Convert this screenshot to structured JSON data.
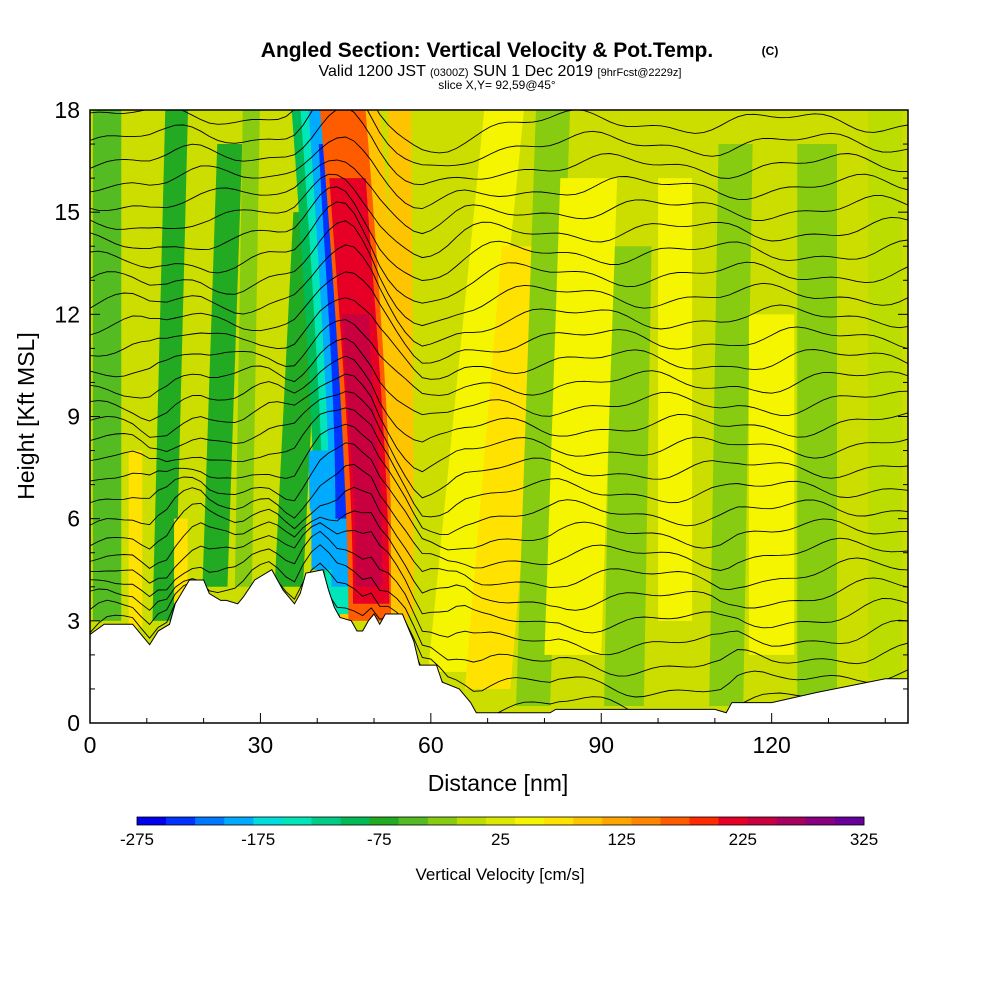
{
  "header": {
    "title": "Angled Section: Vertical Velocity & Pot.Temp.",
    "copyright": "(C)",
    "valid_prefix": "Valid 1200 JST",
    "valid_utc": "(0300Z)",
    "valid_date": "SUN 1 Dec 2019",
    "forecast": "[9hrFcst@2229z]",
    "slice": "slice X,Y= 92,59@45°"
  },
  "chart_data": {
    "type": "heatmap",
    "description_kind": "vertical cross-section: filled contours of vertical velocity with potential temperature contour lines",
    "xlabel": "Distance [nm]",
    "ylabel": "Height [Kft MSL]",
    "xlim": [
      0,
      144
    ],
    "ylim": [
      0,
      18
    ],
    "x_ticks": [
      0,
      30,
      60,
      90,
      120
    ],
    "y_ticks": [
      0,
      3,
      6,
      9,
      12,
      15,
      18
    ],
    "terrain_kft": [
      [
        0,
        2.6
      ],
      [
        2.5,
        2.9
      ],
      [
        7.5,
        2.9
      ],
      [
        9.5,
        2.5
      ],
      [
        10.5,
        2.3
      ],
      [
        12,
        2.7
      ],
      [
        14,
        2.9
      ],
      [
        15,
        3.5
      ],
      [
        17.5,
        4.2
      ],
      [
        20,
        4.2
      ],
      [
        21,
        3.8
      ],
      [
        23,
        3.6
      ],
      [
        24,
        3.6
      ],
      [
        26,
        3.5
      ],
      [
        27,
        3.7
      ],
      [
        29,
        4.2
      ],
      [
        32,
        4.5
      ],
      [
        33,
        4.2
      ],
      [
        34,
        3.9
      ],
      [
        36,
        3.5
      ],
      [
        37,
        3.8
      ],
      [
        38,
        4.4
      ],
      [
        41,
        4.5
      ],
      [
        42,
        3.9
      ],
      [
        43,
        3.4
      ],
      [
        44,
        3.1
      ],
      [
        46,
        3.0
      ],
      [
        47,
        2.7
      ],
      [
        48,
        2.7
      ],
      [
        49,
        3.0
      ],
      [
        50,
        3.2
      ],
      [
        51,
        2.9
      ],
      [
        52,
        3.2
      ],
      [
        55,
        3.2
      ],
      [
        56,
        2.8
      ],
      [
        57,
        2.4
      ],
      [
        58,
        1.7
      ],
      [
        59,
        1.7
      ],
      [
        61,
        1.7
      ],
      [
        62,
        1.2
      ],
      [
        65,
        1.0
      ],
      [
        67,
        0.6
      ],
      [
        68,
        0.3
      ],
      [
        81,
        0.3
      ],
      [
        82,
        0.4
      ],
      [
        110,
        0.4
      ],
      [
        112,
        0.3
      ],
      [
        113,
        0.6
      ],
      [
        120,
        0.6
      ],
      [
        128,
        0.9
      ],
      [
        140,
        1.3
      ],
      [
        144,
        1.3
      ]
    ],
    "updraft_core_cm_s": {
      "x_nm": [
        47,
        52
      ],
      "peak": 275
    },
    "downdraft_core_cm_s": {
      "x_nm": [
        44,
        48
      ],
      "peak": -275
    },
    "theta_contour_count": 28
  },
  "colorbar": {
    "label": "Vertical Velocity [cm/s]",
    "colors": [
      "#0000ee",
      "#0033ff",
      "#0077ff",
      "#00aaff",
      "#00dddd",
      "#00e6b8",
      "#00cc88",
      "#00bb55",
      "#22aa22",
      "#55bb22",
      "#88cc11",
      "#bbdd00",
      "#dde800",
      "#f5f500",
      "#ffe200",
      "#ffc400",
      "#ffa500",
      "#ff8400",
      "#ff5c00",
      "#ff2a00",
      "#e60026",
      "#c80040",
      "#a80060",
      "#880080",
      "#660099"
    ],
    "tick_labels": [
      "-275",
      "-175",
      "-75",
      "25",
      "125",
      "225",
      "325"
    ]
  }
}
